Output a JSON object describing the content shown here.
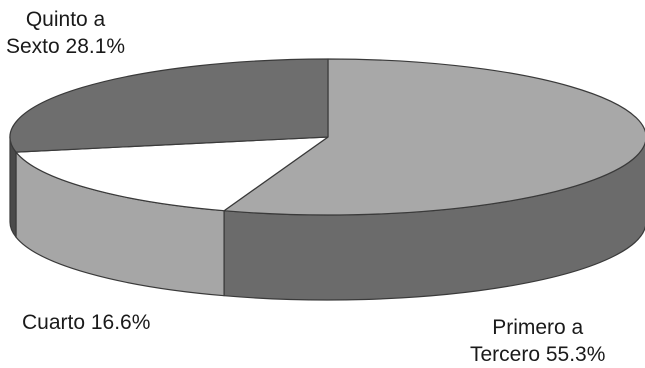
{
  "chart_data": {
    "type": "pie",
    "style": "3d-tilted",
    "title": "",
    "slices": [
      {
        "label": "Primero a Tercero",
        "value": 55.3,
        "display_line1": "Primero a",
        "display_line2": "Tercero  55.3%",
        "top_color": "#a8a8a8",
        "side_color": "#6b6b6b"
      },
      {
        "label": "Cuarto",
        "value": 16.6,
        "display_line1": "Cuarto  16.6%",
        "display_line2": "",
        "top_color": "#ffffff",
        "side_color": "#a6a6a6"
      },
      {
        "label": "Quinto a Sexto",
        "value": 28.1,
        "display_line1": "Quinto a",
        "display_line2": "Sexto 28.1%",
        "top_color": "#6e6e6e",
        "side_color": "#4a4a4a"
      }
    ],
    "start_angle_deg": -90,
    "direction": "clockwise",
    "outline_color": "#3a3a3a",
    "legend": "none"
  }
}
